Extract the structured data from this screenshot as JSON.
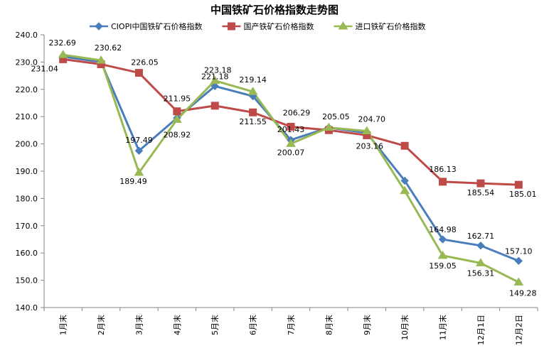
{
  "chart_data": {
    "type": "line",
    "title": "中国铁矿石价格指数走势图",
    "categories": [
      "1月末",
      "2月末",
      "3月末",
      "4月末",
      "5月末",
      "6月末",
      "7月末",
      "8月末",
      "9月末",
      "10月末",
      "11月末",
      "12月1日",
      "12月2日"
    ],
    "ylim": [
      140.0,
      240.0
    ],
    "yticks": [
      "140.0",
      "150.0",
      "160.0",
      "170.0",
      "180.0",
      "190.0",
      "200.0",
      "210.0",
      "220.0",
      "230.0",
      "240.0"
    ],
    "legend_position": "top",
    "grid": false,
    "series": [
      {
        "name": "CIOPI中国铁矿石价格指数",
        "color": "#4a7ebb",
        "marker": "diamond",
        "values": [
          232.0,
          230.0,
          197.49,
          209.5,
          221.18,
          217.5,
          201.43,
          206.0,
          204.0,
          186.5,
          164.98,
          162.71,
          157.1
        ],
        "labels": [
          null,
          null,
          "197.49",
          null,
          "221.18",
          null,
          "201.43",
          null,
          null,
          null,
          "164.98",
          "162.71",
          "157.10"
        ]
      },
      {
        "name": "国产铁矿石价格指数",
        "color": "#be4b48",
        "marker": "square",
        "values": [
          231.04,
          229.2,
          226.05,
          211.95,
          214.0,
          211.55,
          206.29,
          205.05,
          203.16,
          199.3,
          186.13,
          185.54,
          185.01
        ],
        "labels": [
          "231.04",
          null,
          "226.05",
          "211.95",
          null,
          "211.55",
          "206.29",
          "205.05",
          "203.16",
          null,
          "186.13",
          "185.54",
          "185.01"
        ]
      },
      {
        "name": "进口铁矿石价格指数",
        "color": "#98b954",
        "marker": "triangle",
        "values": [
          232.69,
          230.62,
          189.49,
          208.92,
          223.18,
          219.14,
          200.07,
          206.0,
          204.7,
          182.8,
          159.05,
          156.31,
          149.28
        ],
        "labels": [
          "232.69",
          "230.62",
          "189.49",
          "208.92",
          "223.18",
          "219.14",
          "200.07",
          null,
          "204.70",
          null,
          "159.05",
          "156.31",
          "149.28"
        ]
      }
    ]
  }
}
